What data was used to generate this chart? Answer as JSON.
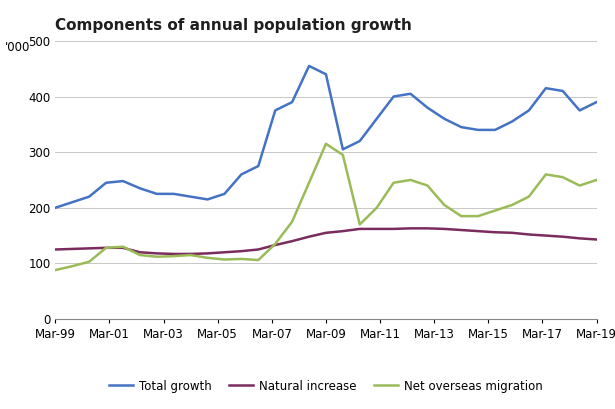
{
  "title": "Components of annual population growth",
  "ylabel": "'000",
  "ylim": [
    0,
    500
  ],
  "yticks": [
    0,
    100,
    200,
    300,
    400,
    500
  ],
  "x_labels": [
    "Mar-99",
    "Mar-01",
    "Mar-03",
    "Mar-05",
    "Mar-07",
    "Mar-09",
    "Mar-11",
    "Mar-13",
    "Mar-15",
    "Mar-17",
    "Mar-19"
  ],
  "total_growth": {
    "label": "Total growth",
    "color": "#4472C4",
    "data": [
      200,
      210,
      220,
      245,
      248,
      235,
      225,
      225,
      220,
      215,
      225,
      260,
      275,
      375,
      390,
      455,
      440,
      305,
      320,
      360,
      400,
      405,
      380,
      360,
      345,
      340,
      340,
      355,
      375,
      415,
      410,
      375,
      390
    ]
  },
  "natural_increase": {
    "label": "Natural increase",
    "color": "#7B2C5E",
    "data": [
      125,
      126,
      127,
      128,
      128,
      120,
      118,
      117,
      117,
      118,
      120,
      122,
      125,
      133,
      140,
      148,
      155,
      158,
      162,
      162,
      162,
      163,
      163,
      162,
      160,
      158,
      156,
      155,
      152,
      150,
      148,
      145,
      143
    ]
  },
  "net_overseas_migration": {
    "label": "Net overseas migration",
    "color": "#9BBB59",
    "data": [
      88,
      95,
      103,
      128,
      130,
      115,
      112,
      113,
      115,
      110,
      107,
      108,
      106,
      135,
      175,
      245,
      315,
      295,
      170,
      200,
      245,
      250,
      240,
      205,
      185,
      185,
      195,
      205,
      220,
      260,
      255,
      240,
      250
    ]
  },
  "line_width": 1.8,
  "bg_color": "#FFFFFF",
  "grid_color": "#C8C8C8",
  "title_fontsize": 11,
  "legend_fontsize": 8.5,
  "axis_fontsize": 8.5,
  "title_color": "#1F1F1F"
}
